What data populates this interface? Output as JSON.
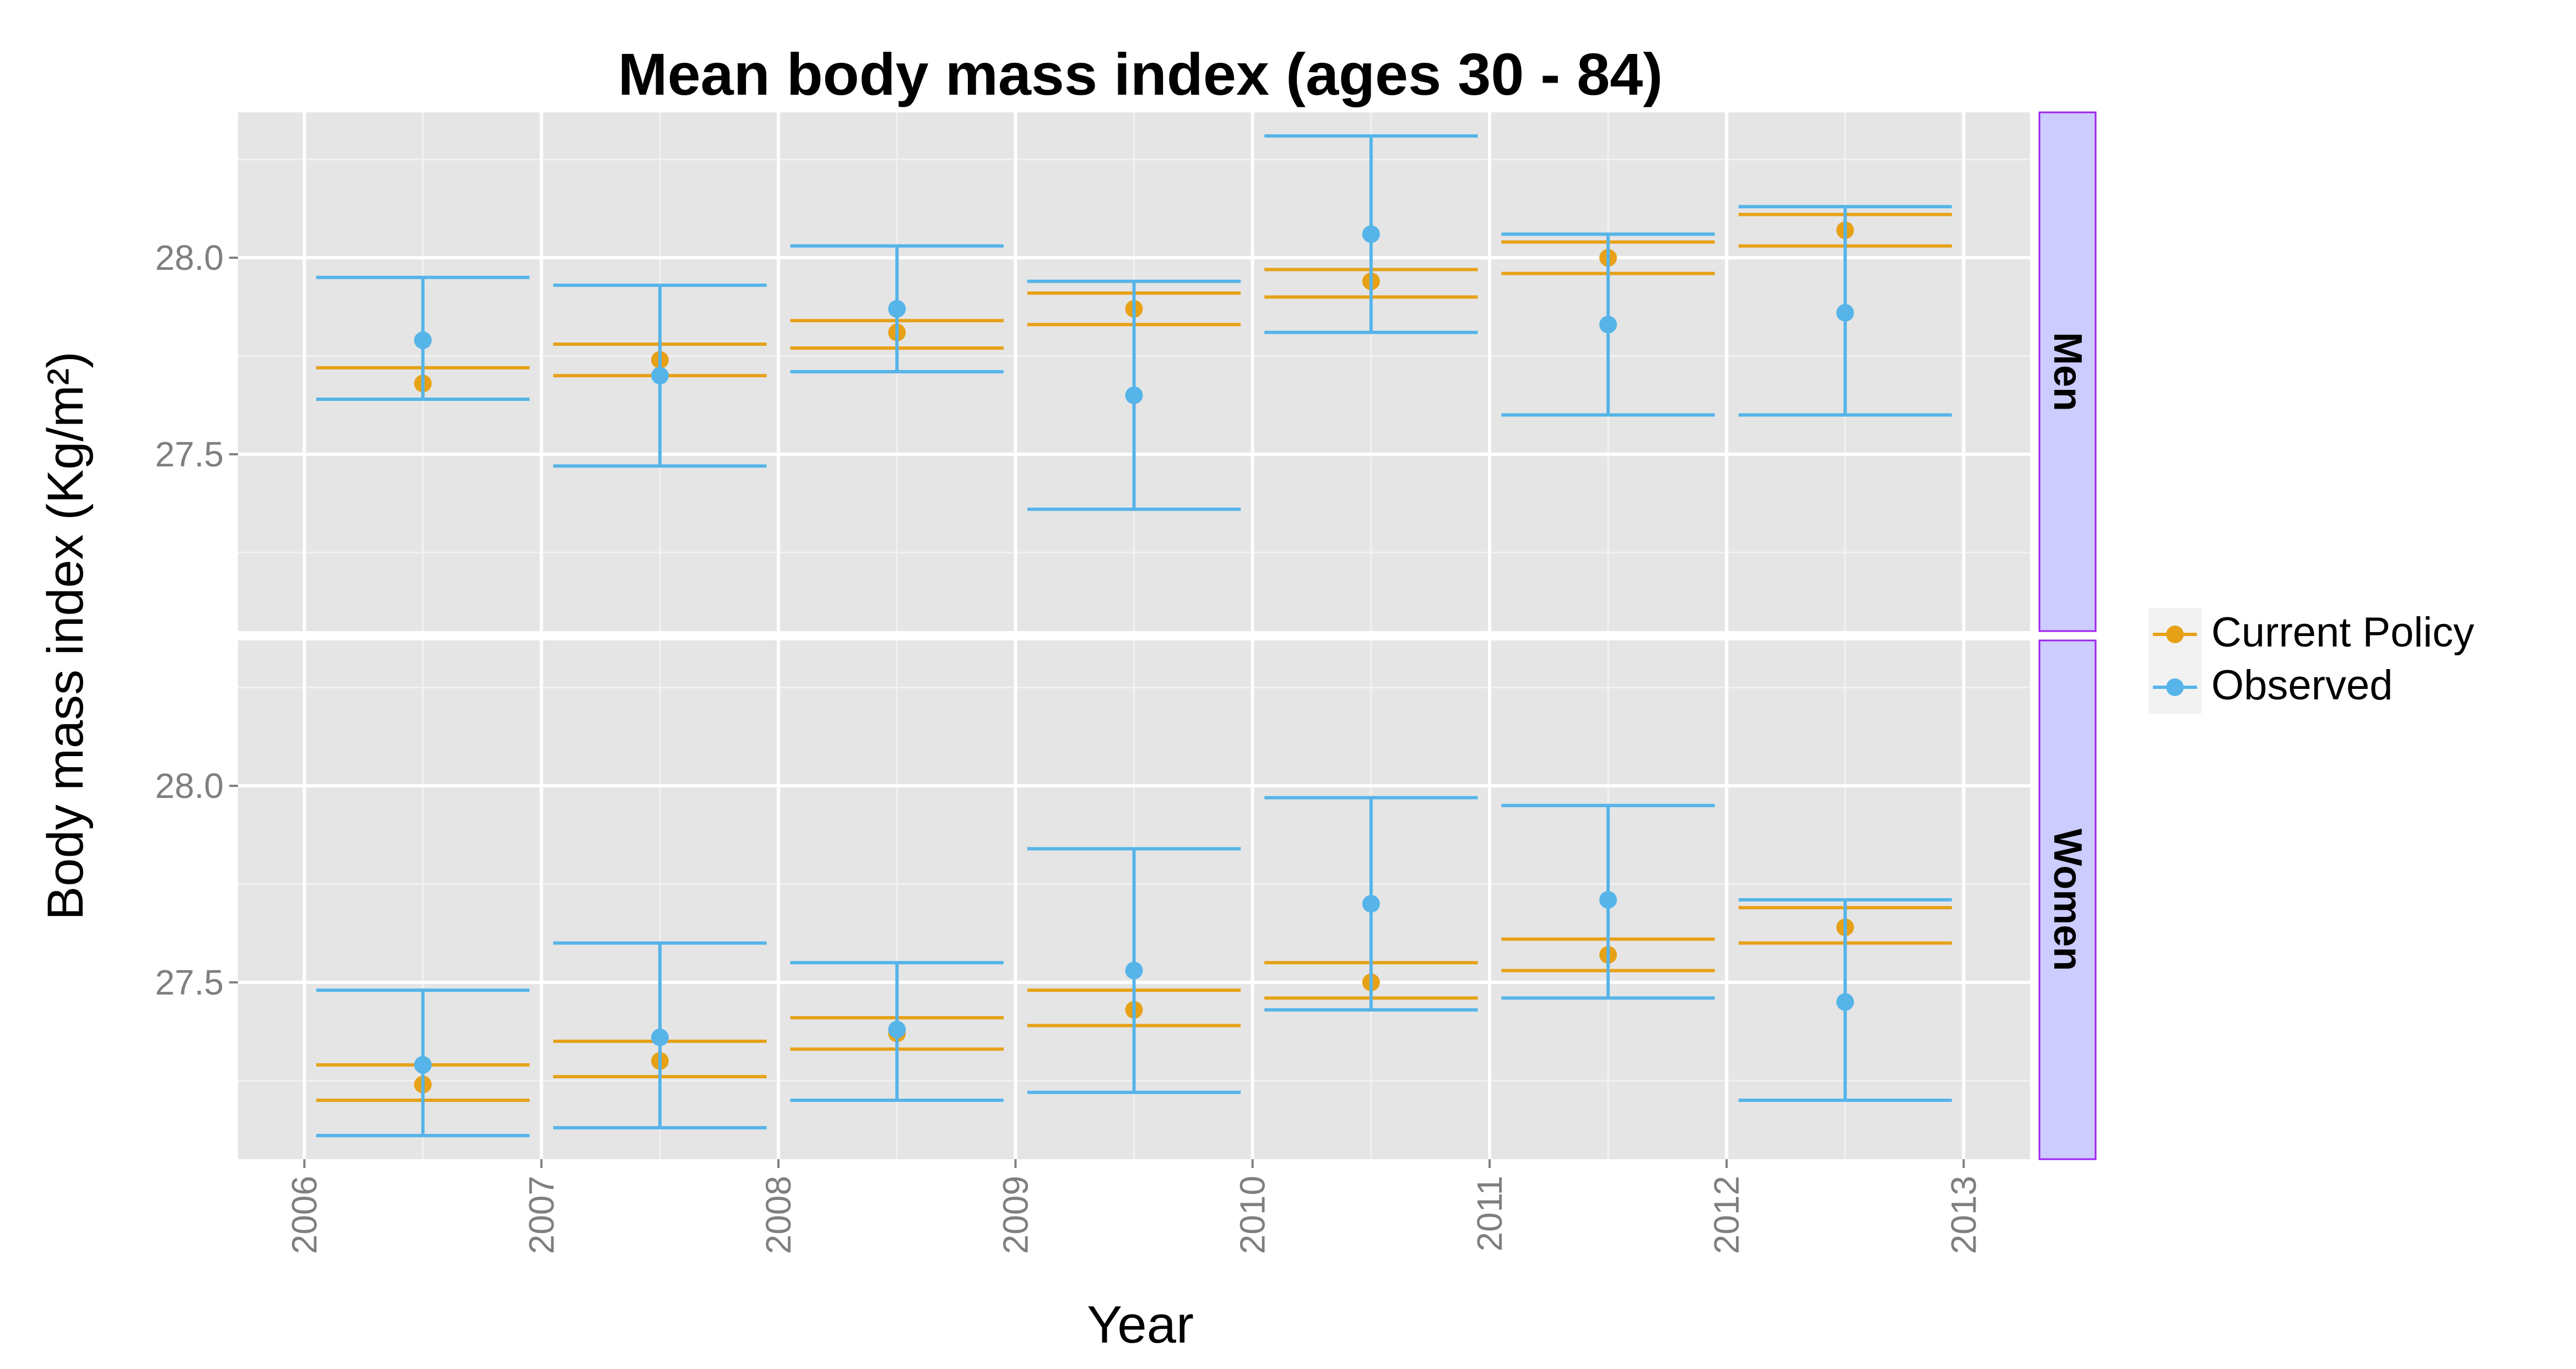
{
  "chart_data": {
    "type": "scatter",
    "title": "Mean body mass index (ages 30 - 84)",
    "xlabel": "Year",
    "ylabel": "Body mass index (Kg/m²)",
    "x_ticks": [
      "2006",
      "2007",
      "2008",
      "2009",
      "2010",
      "2011",
      "2012",
      "2013"
    ],
    "xlim": [
      2006,
      2013
    ],
    "ylim": [
      27.05,
      28.37
    ],
    "y_ticks": [
      "27.5",
      "28.0"
    ],
    "grid": true,
    "legend_position": "right",
    "facets": [
      "Men",
      "Women"
    ],
    "series": [
      {
        "name": "Current Policy",
        "color": "#E6A117",
        "x": [
          2006.5,
          2007.5,
          2008.5,
          2009.5,
          2010.5,
          2011.5,
          2012.5
        ],
        "panels": {
          "Men": {
            "y": [
              27.68,
              27.74,
              27.81,
              27.87,
              27.94,
              28.0,
              28.07
            ],
            "low": [
              27.64,
              27.7,
              27.77,
              27.83,
              27.9,
              27.96,
              28.03
            ],
            "high": [
              27.72,
              27.78,
              27.84,
              27.91,
              27.97,
              28.04,
              28.11
            ]
          },
          "Women": {
            "y": [
              27.24,
              27.3,
              27.37,
              27.43,
              27.5,
              27.57,
              27.64
            ],
            "low": [
              27.2,
              27.26,
              27.33,
              27.39,
              27.46,
              27.53,
              27.6
            ],
            "high": [
              27.29,
              27.35,
              27.41,
              27.48,
              27.55,
              27.61,
              27.69
            ]
          }
        }
      },
      {
        "name": "Observed",
        "color": "#56B4E9",
        "x": [
          2006.5,
          2007.5,
          2008.5,
          2009.5,
          2010.5,
          2011.5,
          2012.5
        ],
        "panels": {
          "Men": {
            "y": [
              27.79,
              27.7,
              27.87,
              27.65,
              28.06,
              27.83,
              27.86
            ],
            "low": [
              27.64,
              27.47,
              27.71,
              27.36,
              27.81,
              27.6,
              27.6
            ],
            "high": [
              27.95,
              27.93,
              28.03,
              27.94,
              28.31,
              28.06,
              28.13
            ]
          },
          "Women": {
            "y": [
              27.29,
              27.36,
              27.38,
              27.53,
              27.7,
              27.71,
              27.45
            ],
            "low": [
              27.11,
              27.13,
              27.2,
              27.22,
              27.43,
              27.46,
              27.2
            ],
            "high": [
              27.48,
              27.6,
              27.55,
              27.84,
              27.97,
              27.95,
              27.71
            ]
          }
        }
      }
    ],
    "colors": {
      "panel_background": "#E5E5E5",
      "grid_major": "#FFFFFF",
      "grid_minor": "#F2F2F2",
      "strip_fill": "#CCCCFF",
      "strip_border": "#A020F0",
      "axis_text": "#7F7F7F",
      "legend_key": "#F2F2F2"
    }
  }
}
